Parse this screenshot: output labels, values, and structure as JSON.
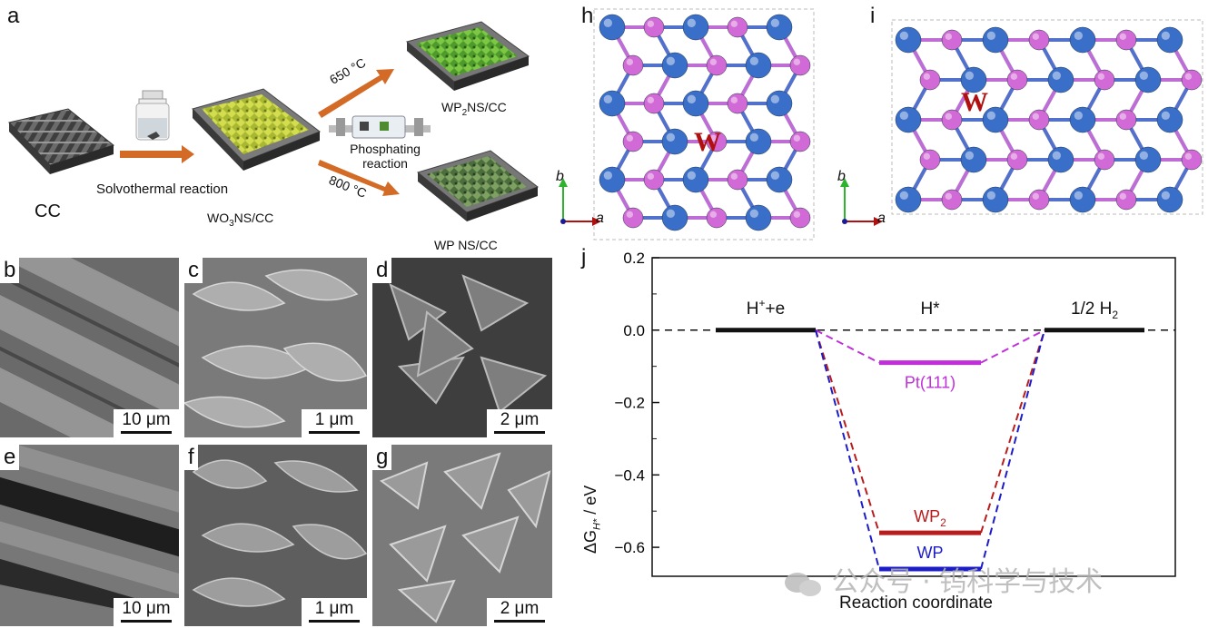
{
  "panel_labels": {
    "a": "a",
    "b": "b",
    "c": "c",
    "d": "d",
    "e": "e",
    "f": "f",
    "g": "g",
    "h": "h",
    "i": "i",
    "j": "j"
  },
  "scheme": {
    "cc_label": "CC",
    "step1_label": "Solvothermal reaction",
    "wo3_label": "WO3NS/CC",
    "wo3_main": "WO",
    "wo3_sub": "3",
    "wo3_rest": "NS/CC",
    "temp_high": "650 °C",
    "temp_low": "800 °C",
    "phos_line1": "Phosphating",
    "phos_line2": "reaction",
    "wp2_main": "WP",
    "wp2_sub": "2",
    "wp2_rest": "NS/CC",
    "wp_label": "WP NS/CC"
  },
  "sem_scales": {
    "b": "10 μm",
    "c": "1 μm",
    "d": "2 μm",
    "e": "10 μm",
    "f": "1 μm",
    "g": "2 μm"
  },
  "crystal": {
    "atom_label": "W",
    "axis_b": "b",
    "axis_a": "a",
    "colors": {
      "W": "#3a6fc9",
      "P": "#d16ad6"
    }
  },
  "chart_data": {
    "type": "line",
    "title": "",
    "xlabel": "Reaction coordinate",
    "ylabel_main": "ΔG",
    "ylabel_sub": "H*",
    "ylabel_rest": " / eV",
    "ylim": [
      -0.68,
      0.2
    ],
    "yticks": [
      0.2,
      0.0,
      -0.2,
      -0.4,
      -0.6
    ],
    "ytick_labels": [
      "0.2",
      "0.0",
      "−0.2",
      "−0.4",
      "−0.6"
    ],
    "states": [
      {
        "label_main": "H",
        "label_sup": "+",
        "label_rest": "+e"
      },
      {
        "label_main": "H*",
        "label_sup": "",
        "label_rest": ""
      },
      {
        "label_main": "1/2 H",
        "label_sup": "",
        "label_rest": "",
        "label_sub": "2"
      }
    ],
    "series": [
      {
        "name": "Pt(111)",
        "name_main": "Pt(111)",
        "name_sub": "",
        "values": [
          0,
          -0.09,
          0
        ],
        "color": "#c030d8"
      },
      {
        "name": "WP2",
        "name_main": "WP",
        "name_sub": "2",
        "values": [
          0,
          -0.56,
          0
        ],
        "color": "#b81c1c"
      },
      {
        "name": "WP",
        "name_main": "WP",
        "name_sub": "",
        "values": [
          0,
          -0.66,
          0
        ],
        "color": "#1c1cc8"
      }
    ]
  },
  "watermark": "公众号 · 钨科学与技术"
}
